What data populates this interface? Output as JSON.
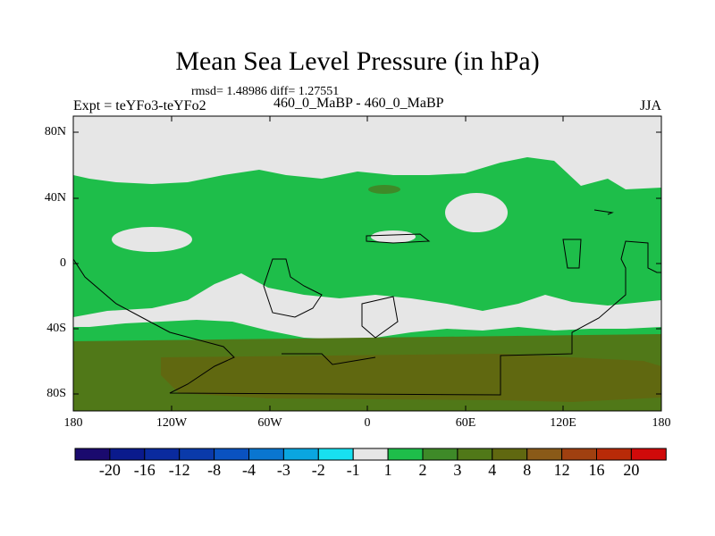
{
  "title": "Mean Sea Level Pressure (in hPa)",
  "stats": "rmsd= 1.48986 diff= 1.27551",
  "experiment": "Expt = teYFo3-teYFo2",
  "period": "460_0_MaBP - 460_0_MaBP",
  "season": "JJA",
  "lat_ticks": [
    "80N",
    "40N",
    "0",
    "40S",
    "80S"
  ],
  "lon_ticks": [
    "180",
    "120W",
    "60W",
    "0",
    "60E",
    "120E",
    "180"
  ],
  "colorbar": {
    "labels": [
      "-20",
      "-16",
      "-12",
      "-8",
      "-4",
      "-3",
      "-2",
      "-1",
      "1",
      "2",
      "3",
      "4",
      "8",
      "12",
      "16",
      "20"
    ],
    "colors": [
      "#1a0a6e",
      "#0a1a8c",
      "#0a2a9e",
      "#0a3aaa",
      "#0a52c0",
      "#0a76d0",
      "#0aa6e0",
      "#18e0f0",
      "#e6e6e6",
      "#1ebe4a",
      "#3e8a28",
      "#507818",
      "#606810",
      "#8a5a18",
      "#a04010",
      "#b82a08",
      "#d00a0a"
    ]
  }
}
